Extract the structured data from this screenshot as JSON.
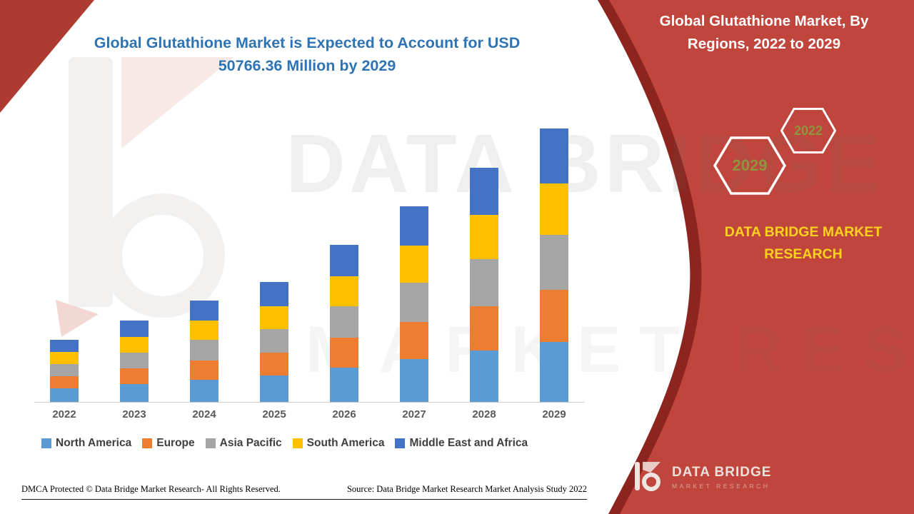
{
  "left_title": "Global Glutathione Market is Expected to Account for USD 50766.36 Million by 2029",
  "right_panel": {
    "title": "Global Glutathione Market, By Regions, 2022 to 2029",
    "hexagons": [
      {
        "label": "2029"
      },
      {
        "label": "2022"
      }
    ],
    "brand_text": "DATA BRIDGE MARKET RESEARCH"
  },
  "chart_data": {
    "type": "bar",
    "subtype": "stacked",
    "title": "Global Glutathione Market, By Regions, 2022 to 2029",
    "unit": "USD Million",
    "categories": [
      "2022",
      "2023",
      "2024",
      "2025",
      "2026",
      "2027",
      "2028",
      "2029"
    ],
    "series": [
      {
        "name": "North America",
        "color": "#5b9bd5",
        "values": [
          2540,
          3320,
          4140,
          4900,
          6410,
          7990,
          9560,
          11170
        ]
      },
      {
        "name": "Europe",
        "color": "#ed7d31",
        "values": [
          2190,
          2870,
          3580,
          4230,
          5540,
          6900,
          8260,
          9645
        ]
      },
      {
        "name": "Asia Pacific",
        "color": "#a5a5a5",
        "values": [
          2310,
          3020,
          3760,
          4450,
          5830,
          7260,
          8690,
          10155
        ]
      },
      {
        "name": "South America",
        "color": "#ffc000",
        "values": [
          2190,
          2870,
          3580,
          4230,
          5540,
          6900,
          8260,
          9645
        ]
      },
      {
        "name": "Middle East and Africa",
        "color": "#4472c4",
        "values": [
          2300,
          3020,
          3760,
          4450,
          5830,
          7250,
          8690,
          10151.36
        ]
      }
    ],
    "totals_estimated": [
      11530,
      15100,
      18820,
      22260,
      29150,
      36300,
      43460,
      50766.36
    ],
    "stated_value_2029": 50766.36,
    "y_axis_ticks_visible": false,
    "grid": false,
    "legend_position": "bottom"
  },
  "footer": {
    "dmca": "DMCA Protected © Data Bridge Market Research- All Rights Reserved.",
    "source": "Source: Data Bridge Market Research Market Analysis Study 2022"
  },
  "brand_logo": {
    "name": "DATA BRIDGE",
    "subtitle": "MARKET RESEARCH"
  },
  "watermark": {
    "line1": "DATA BRIDGE",
    "line2": "MARKET RESEARCH"
  },
  "colors": {
    "panel_red": "#c0453c",
    "panel_dark_red": "#8c2420",
    "corner_red": "#ae3a30",
    "left_title_blue": "#2e74b5",
    "brand_yellow": "#ffd21f",
    "hex_year_olive": "#8f953f"
  }
}
